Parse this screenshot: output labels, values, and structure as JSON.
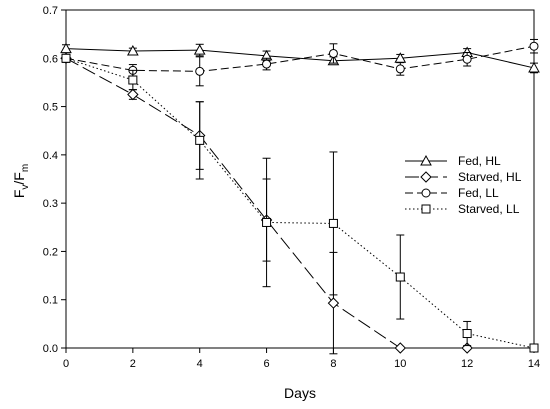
{
  "chart_data": {
    "type": "line",
    "xlabel": "Days",
    "ylabel_main": "F",
    "ylabel_sub1": "v",
    "ylabel_slash": "/F",
    "ylabel_sub2": "m",
    "xlim": [
      0,
      14
    ],
    "ylim": [
      0.0,
      0.7
    ],
    "xticks": [
      "0",
      "2",
      "4",
      "6",
      "8",
      "10",
      "12",
      "14"
    ],
    "yticks": [
      "0.0",
      "0.1",
      "0.2",
      "0.3",
      "0.4",
      "0.5",
      "0.6",
      "0.7"
    ],
    "grid": false,
    "legend_position": "center-right",
    "series": [
      {
        "name": "Fed, HL",
        "marker": "triangle",
        "dash": "solid",
        "x": [
          0,
          2,
          4,
          6,
          8,
          10,
          12,
          14
        ],
        "y": [
          0.62,
          0.615,
          0.617,
          0.605,
          0.595,
          0.6,
          0.612,
          0.58
        ],
        "err": [
          0.008,
          0.006,
          0.012,
          0.01,
          0.008,
          0.008,
          0.008,
          0.01
        ]
      },
      {
        "name": "Starved, HL",
        "marker": "diamond",
        "dash": "longdash",
        "x": [
          0,
          2,
          4,
          6,
          8,
          10,
          12
        ],
        "y": [
          0.6,
          0.525,
          0.44,
          0.265,
          0.093,
          0.0,
          0.0
        ],
        "err": [
          0.008,
          0.01,
          0.07,
          0.085,
          0.105,
          0.0,
          0.0
        ]
      },
      {
        "name": "Fed, LL",
        "marker": "circle",
        "dash": "dash",
        "x": [
          0,
          2,
          4,
          6,
          8,
          10,
          12,
          14
        ],
        "y": [
          0.6,
          0.575,
          0.573,
          0.588,
          0.61,
          0.578,
          0.598,
          0.625
        ],
        "err": [
          0.008,
          0.012,
          0.03,
          0.012,
          0.02,
          0.013,
          0.014,
          0.014
        ]
      },
      {
        "name": "Starved, LL",
        "marker": "square",
        "dash": "dotted",
        "x": [
          0,
          2,
          4,
          6,
          8,
          10,
          12,
          14
        ],
        "y": [
          0.6,
          0.555,
          0.43,
          0.26,
          0.258,
          0.147,
          0.03,
          0.0
        ],
        "err": [
          0.008,
          0.02,
          0.08,
          0.133,
          0.148,
          0.087,
          0.025,
          0.0
        ]
      }
    ]
  }
}
